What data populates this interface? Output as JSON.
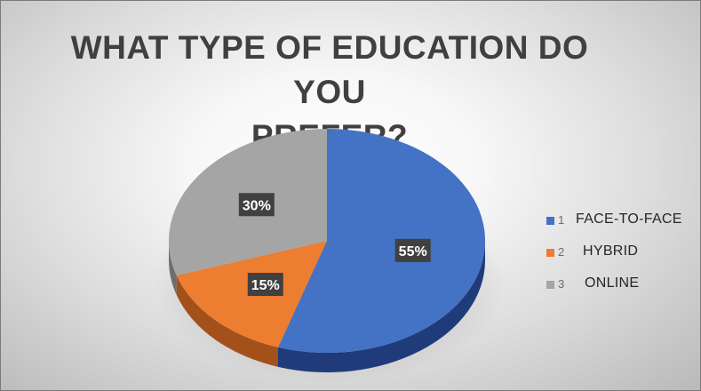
{
  "chart_data": {
    "type": "pie",
    "title": "WHAT TYPE OF EDUCATION DO YOU PREFER?",
    "title_lines": [
      "WHAT TYPE OF EDUCATION DO YOU",
      "PREFER?"
    ],
    "slices": [
      {
        "num": "1",
        "label": "FACE-TO-FACE",
        "value": 55,
        "display": "55%",
        "color": "#4472c4",
        "side_color": "#1f3b7a"
      },
      {
        "num": "2",
        "label": "HYBRID",
        "value": 15,
        "display": "15%",
        "color": "#ed7d31",
        "side_color": "#a4501b"
      },
      {
        "num": "3",
        "label": "ONLINE",
        "value": 30,
        "display": "30%",
        "color": "#a5a5a5",
        "side_color": "#6e6e6e"
      }
    ],
    "start_angle_deg": 0,
    "direction": "clockwise",
    "style": "3d",
    "legend_position": "right"
  }
}
